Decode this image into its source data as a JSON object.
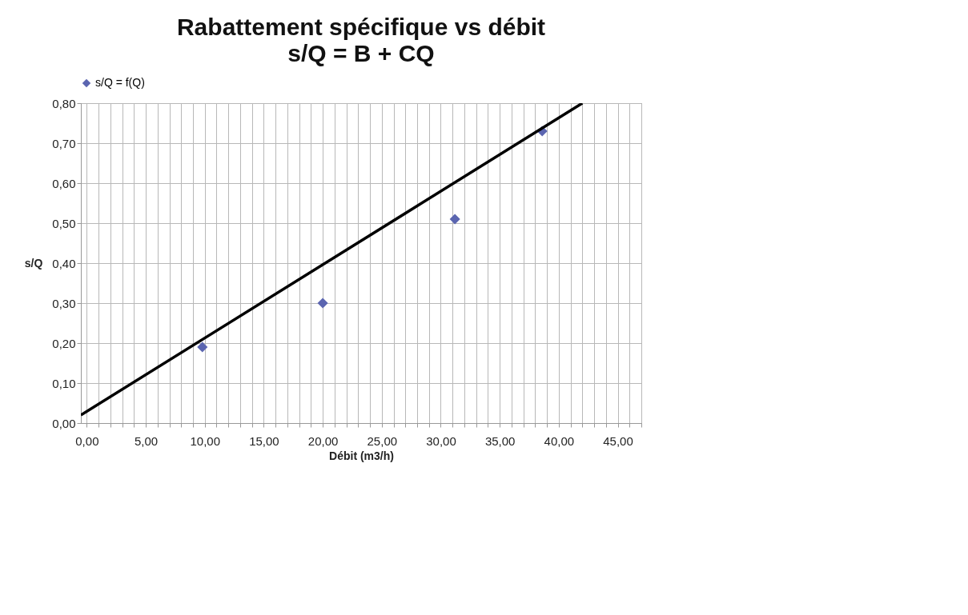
{
  "chart_data": {
    "type": "scatter",
    "title": "Rabattement spécifique vs débit",
    "subtitle": "s/Q = B + CQ",
    "xlabel": "Débit (m3/h)",
    "ylabel": "s/Q",
    "xlim": [
      -0.5,
      47
    ],
    "ylim": [
      0,
      0.8
    ],
    "xticks": [
      {
        "value": 0,
        "label": "0,00"
      },
      {
        "value": 1,
        "label": null
      },
      {
        "value": 2,
        "label": null
      },
      {
        "value": 3,
        "label": null
      },
      {
        "value": 4,
        "label": null
      },
      {
        "value": 5,
        "label": "5,00"
      },
      {
        "value": 6,
        "label": null
      },
      {
        "value": 7,
        "label": null
      },
      {
        "value": 8,
        "label": null
      },
      {
        "value": 9,
        "label": null
      },
      {
        "value": 10,
        "label": "10,00"
      },
      {
        "value": 11,
        "label": null
      },
      {
        "value": 12,
        "label": null
      },
      {
        "value": 13,
        "label": null
      },
      {
        "value": 14,
        "label": null
      },
      {
        "value": 15,
        "label": "15,00"
      },
      {
        "value": 16,
        "label": null
      },
      {
        "value": 17,
        "label": null
      },
      {
        "value": 18,
        "label": null
      },
      {
        "value": 19,
        "label": null
      },
      {
        "value": 20,
        "label": "20,00"
      },
      {
        "value": 21,
        "label": null
      },
      {
        "value": 22,
        "label": null
      },
      {
        "value": 23,
        "label": null
      },
      {
        "value": 24,
        "label": null
      },
      {
        "value": 25,
        "label": "25,00"
      },
      {
        "value": 26,
        "label": null
      },
      {
        "value": 27,
        "label": null
      },
      {
        "value": 28,
        "label": null
      },
      {
        "value": 29,
        "label": null
      },
      {
        "value": 30,
        "label": "30,00"
      },
      {
        "value": 31,
        "label": null
      },
      {
        "value": 32,
        "label": null
      },
      {
        "value": 33,
        "label": null
      },
      {
        "value": 34,
        "label": null
      },
      {
        "value": 35,
        "label": "35,00"
      },
      {
        "value": 36,
        "label": null
      },
      {
        "value": 37,
        "label": null
      },
      {
        "value": 38,
        "label": null
      },
      {
        "value": 39,
        "label": null
      },
      {
        "value": 40,
        "label": "40,00"
      },
      {
        "value": 41,
        "label": null
      },
      {
        "value": 42,
        "label": null
      },
      {
        "value": 43,
        "label": null
      },
      {
        "value": 44,
        "label": null
      },
      {
        "value": 45,
        "label": "45,00"
      },
      {
        "value": 46,
        "label": null
      },
      {
        "value": 47,
        "label": null
      }
    ],
    "yticks": [
      {
        "value": 0,
        "label": "0,00"
      },
      {
        "value": 0.1,
        "label": "0,10"
      },
      {
        "value": 0.2,
        "label": "0,20"
      },
      {
        "value": 0.3,
        "label": "0,30"
      },
      {
        "value": 0.4,
        "label": "0,40"
      },
      {
        "value": 0.5,
        "label": "0,50"
      },
      {
        "value": 0.6,
        "label": "0,60"
      },
      {
        "value": 0.7,
        "label": "0,70"
      },
      {
        "value": 0.8,
        "label": "0,80"
      }
    ],
    "grid": true,
    "legend": "top",
    "marker": "diamond",
    "series": [
      {
        "name": "s/Q = f(Q)",
        "color": "#5b65b0",
        "x": [
          9.8,
          20.0,
          31.2,
          38.6
        ],
        "values": [
          0.19,
          0.3,
          0.51,
          0.73
        ]
      },
      {
        "type": "line",
        "color": "#000000",
        "line_style": "solid",
        "marker": "none",
        "x": [
          -0.5,
          42.0
        ],
        "values": [
          0.02,
          0.8
        ]
      }
    ]
  }
}
